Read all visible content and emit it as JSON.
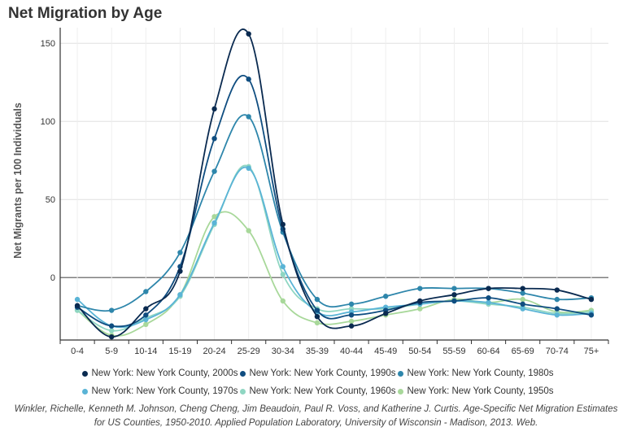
{
  "chart_data": {
    "type": "line",
    "title": "Net Migration by Age",
    "ylabel": "Net Migrants per 100 Individuals",
    "xlabel": "",
    "ylim": [
      -40,
      160
    ],
    "yticks": [
      0,
      50,
      100,
      150
    ],
    "categories": [
      "0-4",
      "5-9",
      "10-14",
      "15-19",
      "20-24",
      "25-29",
      "30-34",
      "35-39",
      "40-44",
      "45-49",
      "50-54",
      "55-59",
      "60-64",
      "65-69",
      "70-74",
      "75+"
    ],
    "grid": true,
    "legend_position": "bottom",
    "series": [
      {
        "name": "New York: New York County, 2000s",
        "color": "#0a2a50",
        "values": [
          -18,
          -38,
          -20,
          4,
          108,
          156,
          34,
          -25,
          -31,
          -23,
          -15,
          -11,
          -7,
          -7,
          -8,
          -14
        ]
      },
      {
        "name": "New York: New York County, 1990s",
        "color": "#0f4d80",
        "values": [
          -19,
          -31,
          -24,
          7,
          89,
          127,
          31,
          -21,
          -24,
          -21,
          -16,
          -15,
          -13,
          -17,
          -20,
          -24
        ]
      },
      {
        "name": "New York: New York County, 1980s",
        "color": "#2e86ab",
        "values": [
          -18,
          -21,
          -9,
          16,
          68,
          103,
          29,
          -14,
          -17,
          -12,
          -7,
          -7,
          -7,
          -10,
          -14,
          -13
        ]
      },
      {
        "name": "New York: New York County, 1970s",
        "color": "#5ab4d6",
        "values": [
          -14,
          -31,
          -27,
          -11,
          35,
          70,
          7,
          -22,
          -22,
          -19,
          -17,
          -15,
          -16,
          -20,
          -24,
          -23
        ]
      },
      {
        "name": "New York: New York County, 1960s",
        "color": "#8fd6c2",
        "values": [
          -21,
          -34,
          -26,
          -12,
          34,
          71,
          2,
          -20,
          -20,
          -20,
          -17,
          -15,
          -17,
          -19,
          -23,
          -22
        ]
      },
      {
        "name": "New York: New York County, 1950s",
        "color": "#a8d89a",
        "values": [
          -21,
          -37,
          -30,
          -11,
          39,
          30,
          -15,
          -29,
          -28,
          -24,
          -20,
          -14,
          -16,
          -14,
          -22,
          -21
        ]
      }
    ]
  },
  "source_text": "Winkler, Richelle, Kenneth M. Johnson, Cheng Cheng, Jim Beaudoin, Paul R. Voss, and Katherine J. Curtis. Age-Specific Net Migration Estimates for US Counties, 1950-2010. Applied Population Laboratory, University of Wisconsin - Madison, 2013. Web."
}
